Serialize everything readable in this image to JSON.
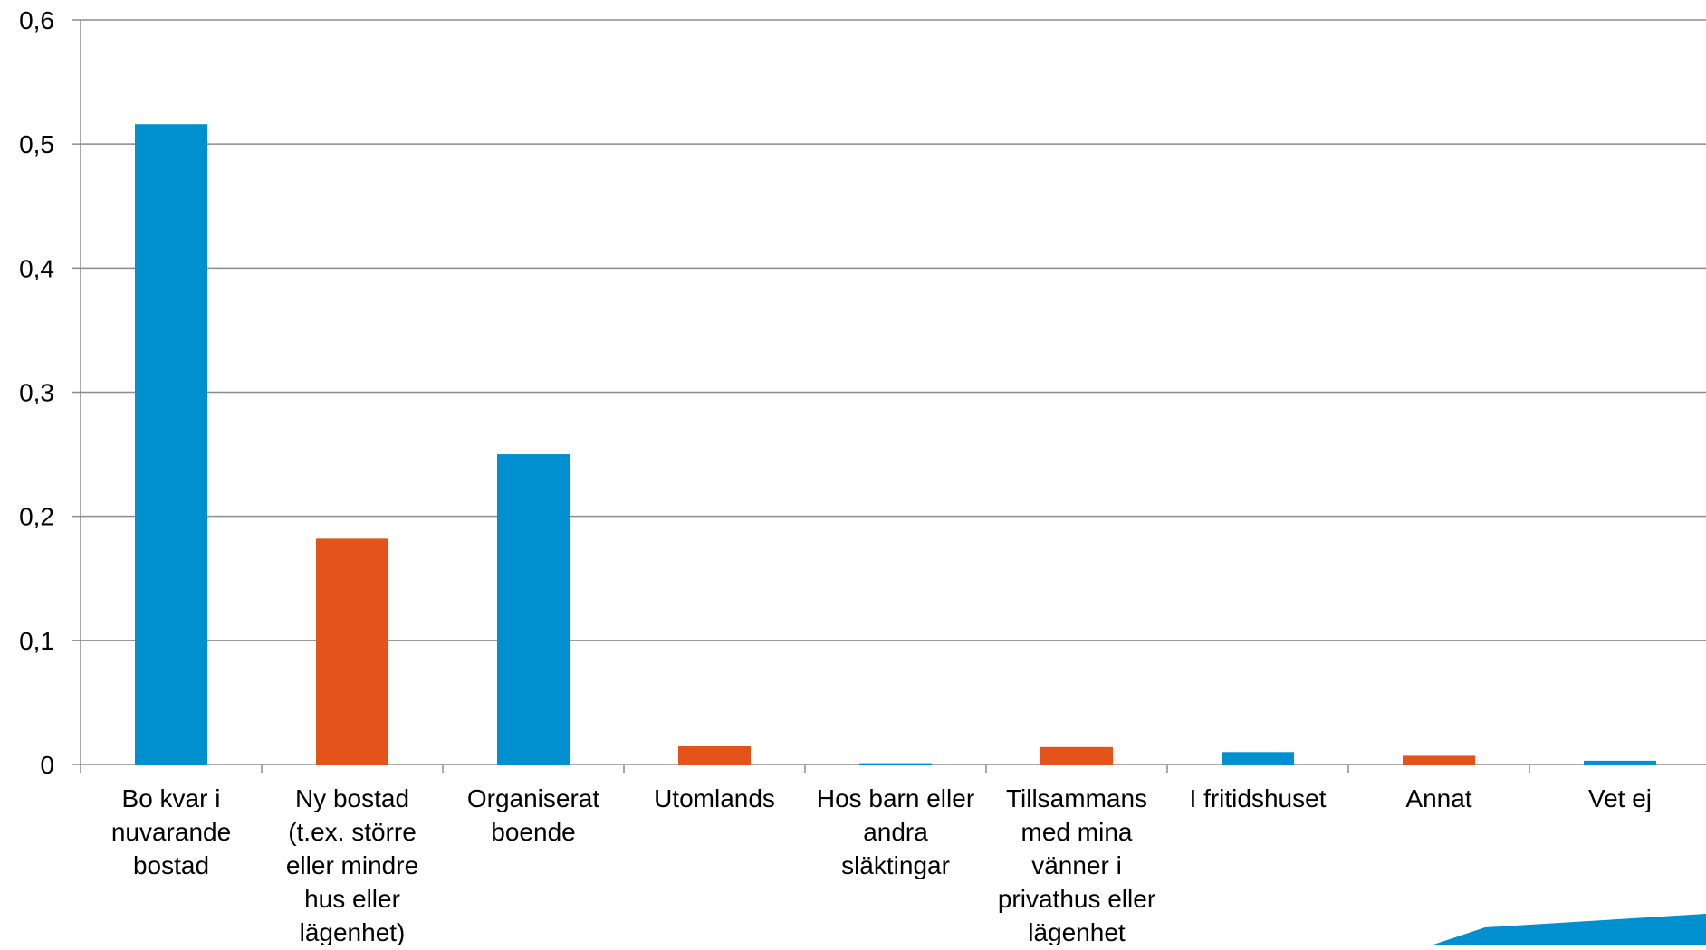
{
  "chart_data": {
    "type": "bar",
    "title": "",
    "xlabel": "",
    "ylabel": "",
    "ylim": [
      0,
      0.6
    ],
    "y_ticks": [
      0,
      0.1,
      0.2,
      0.3,
      0.4,
      0.5,
      0.6
    ],
    "y_tick_labels": [
      "0",
      "0,1",
      "0,2",
      "0,3",
      "0,4",
      "0,5",
      "0,6"
    ],
    "grid": true,
    "legend": "none",
    "categories": [
      [
        "Bo kvar i",
        "nuvarande",
        "bostad"
      ],
      [
        "Ny bostad",
        "(t.ex. större",
        "eller mindre",
        "hus eller",
        "lägenhet)"
      ],
      [
        "Organiserat",
        "boende"
      ],
      [
        "Utomlands"
      ],
      [
        "Hos barn eller",
        "andra",
        "släktingar"
      ],
      [
        "Tillsammans",
        "med mina",
        "vänner i",
        "privathus eller",
        "lägenhet"
      ],
      [
        "I fritidshuset"
      ],
      [
        "Annat"
      ],
      [
        "Vet ej"
      ]
    ],
    "values": [
      0.516,
      0.182,
      0.25,
      0.015,
      0.001,
      0.014,
      0.01,
      0.007,
      0.003
    ],
    "bar_colors": [
      "#0090CF",
      "#E4541A",
      "#0090CF",
      "#E4541A",
      "#0090CF",
      "#E4541A",
      "#0090CF",
      "#E4541A",
      "#0090CF"
    ],
    "colors": {
      "blue": "#0090CF",
      "orange": "#E4541A",
      "grid": "#8C8C8C",
      "axis": "#8C8C8C",
      "accent_corner": "#0090CF"
    }
  }
}
